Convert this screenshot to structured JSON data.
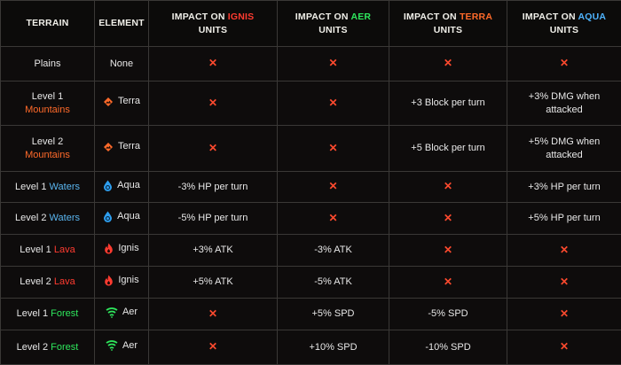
{
  "header": {
    "terrain": "TERRAIN",
    "element": "ELEMENT",
    "impact_prefix": "IMPACT ON",
    "units": "UNITS",
    "ignis": "IGNIS",
    "aer": "AER",
    "terra": "TERRA",
    "aqua": "AQUA"
  },
  "cross": "✕",
  "colors": {
    "ignis": "#ff3b30",
    "aer": "#2ee65c",
    "terra": "#ff6a2a",
    "aqua": "#4fb4ff"
  },
  "rows": [
    {
      "level": "",
      "terrain": "Plains",
      "element": "None",
      "icon": "",
      "ignis": "",
      "aer": "",
      "terra": "",
      "aqua": ""
    },
    {
      "level": "Level 1",
      "terrain": "Mountains",
      "element": "Terra",
      "icon": "terra-icon",
      "ignis": "",
      "aer": "",
      "terra": "+3 Block per turn",
      "aqua": "+3% DMG when attacked"
    },
    {
      "level": "Level 2",
      "terrain": "Mountains",
      "element": "Terra",
      "icon": "terra-icon",
      "ignis": "",
      "aer": "",
      "terra": "+5 Block per turn",
      "aqua": "+5% DMG when attacked"
    },
    {
      "level": "Level 1",
      "terrain": "Waters",
      "element": "Aqua",
      "icon": "aqua-icon",
      "ignis": "-3% HP per turn",
      "aer": "",
      "terra": "",
      "aqua": "+3% HP per turn"
    },
    {
      "level": "Level 2",
      "terrain": "Waters",
      "element": "Aqua",
      "icon": "aqua-icon",
      "ignis": "-5% HP per turn",
      "aer": "",
      "terra": "",
      "aqua": "+5% HP per turn"
    },
    {
      "level": "Level 1",
      "terrain": "Lava",
      "element": "Ignis",
      "icon": "ignis-icon",
      "ignis": "+3% ATK",
      "aer": "-3% ATK",
      "terra": "",
      "aqua": ""
    },
    {
      "level": "Level 2",
      "terrain": "Lava",
      "element": "Ignis",
      "icon": "ignis-icon",
      "ignis": "+5% ATK",
      "aer": "-5% ATK",
      "terra": "",
      "aqua": ""
    },
    {
      "level": "Level 1",
      "terrain": "Forest",
      "element": "Aer",
      "icon": "aer-icon",
      "ignis": "",
      "aer": "+5% SPD",
      "terra": "-5% SPD",
      "aqua": ""
    },
    {
      "level": "Level 2",
      "terrain": "Forest",
      "element": "Aer",
      "icon": "aer-icon",
      "ignis": "",
      "aer": "+10% SPD",
      "terra": "-10% SPD",
      "aqua": ""
    }
  ]
}
